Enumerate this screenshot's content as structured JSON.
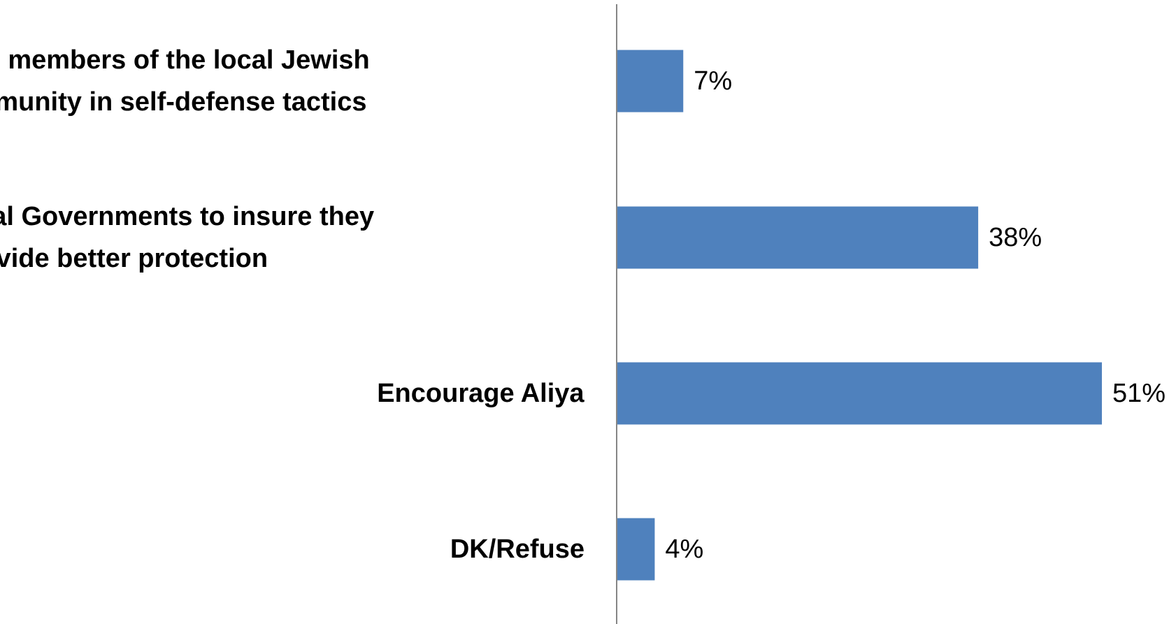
{
  "chart_data": {
    "type": "bar",
    "orientation": "horizontal",
    "categories": [
      [
        "Train members of the local Jewish",
        "community in self-defense tactics"
      ],
      [
        "Contact local Governments to insure they",
        "provide better protection"
      ],
      [
        "Encourage Aliya"
      ],
      [
        "DK/Refuse"
      ]
    ],
    "values": [
      7,
      38,
      51,
      4
    ],
    "value_labels": [
      "7%",
      "38%",
      "51%",
      "4%"
    ],
    "unit": "%",
    "xlim": [
      0,
      51
    ],
    "grid": false,
    "legend": "none",
    "colors": {
      "bar": "#4f81bd",
      "axis": "#868686",
      "text": "#000000"
    }
  }
}
